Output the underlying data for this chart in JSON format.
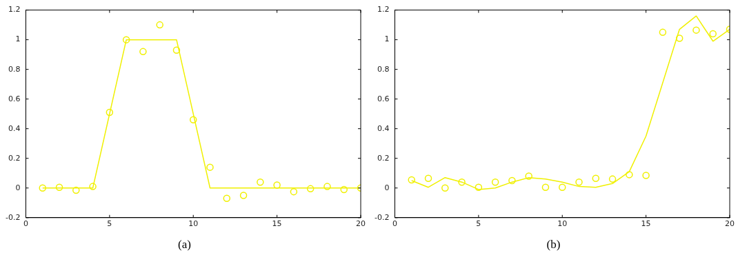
{
  "chart_data": [
    {
      "type": "scatter",
      "annotations": [
        "(a)"
      ],
      "xlim": [
        0,
        20
      ],
      "xticks": [
        0,
        5,
        10,
        15,
        20
      ],
      "ylim": [
        -0.2,
        1.2
      ],
      "yticks": [
        -0.2,
        0,
        0.2,
        0.4,
        0.6,
        0.8,
        1,
        1.2
      ],
      "grid": false,
      "legend": false,
      "series": [
        {
          "type": "line",
          "color": "#f0f000",
          "marker": "none",
          "line_style": "solid",
          "x": [
            1,
            4,
            6,
            9,
            11,
            20
          ],
          "values": [
            0,
            0,
            1,
            1,
            0,
            0
          ]
        },
        {
          "type": "scatter",
          "color": "#f0f000",
          "marker": "circle",
          "x": [
            1,
            2,
            3,
            4,
            5,
            6,
            7,
            8,
            9,
            10,
            11,
            12,
            13,
            14,
            15,
            16,
            17,
            18,
            19,
            20
          ],
          "values": [
            0,
            0.005,
            -0.015,
            0.01,
            0.51,
            1.0,
            0.92,
            1.1,
            0.93,
            0.46,
            0.14,
            -0.07,
            -0.05,
            0.04,
            0.02,
            -0.025,
            -0.005,
            0.01,
            -0.01,
            0
          ]
        }
      ]
    },
    {
      "type": "scatter",
      "annotations": [
        "(b)"
      ],
      "xlim": [
        0,
        20
      ],
      "xticks": [
        0,
        5,
        10,
        15,
        20
      ],
      "ylim": [
        -0.2,
        1.2
      ],
      "yticks": [
        -0.2,
        0,
        0.2,
        0.4,
        0.6,
        0.8,
        1,
        1.2
      ],
      "grid": false,
      "legend": false,
      "series": [
        {
          "type": "line",
          "color": "#f0f000",
          "marker": "none",
          "line_style": "solid",
          "x": [
            1,
            2,
            3,
            4,
            5,
            6,
            7,
            8,
            9,
            10,
            11,
            12,
            13,
            14,
            15,
            16,
            17,
            18,
            19,
            20
          ],
          "values": [
            0.05,
            0.005,
            0.07,
            0.04,
            -0.01,
            0,
            0.04,
            0.07,
            0.06,
            0.04,
            0.01,
            0.005,
            0.03,
            0.11,
            0.35,
            0.71,
            1.07,
            1.16,
            0.99,
            1.07
          ]
        },
        {
          "type": "scatter",
          "color": "#f0f000",
          "marker": "circle",
          "x": [
            1,
            2,
            3,
            4,
            5,
            6,
            7,
            8,
            9,
            10,
            11,
            12,
            13,
            14,
            15,
            16,
            17,
            18,
            19,
            20
          ],
          "values": [
            0.055,
            0.065,
            0,
            0.04,
            0.005,
            0.04,
            0.05,
            0.08,
            0.005,
            0.005,
            0.04,
            0.065,
            0.06,
            0.09,
            0.085,
            1.05,
            1.01,
            1.065,
            1.04,
            1.07
          ]
        }
      ]
    }
  ]
}
